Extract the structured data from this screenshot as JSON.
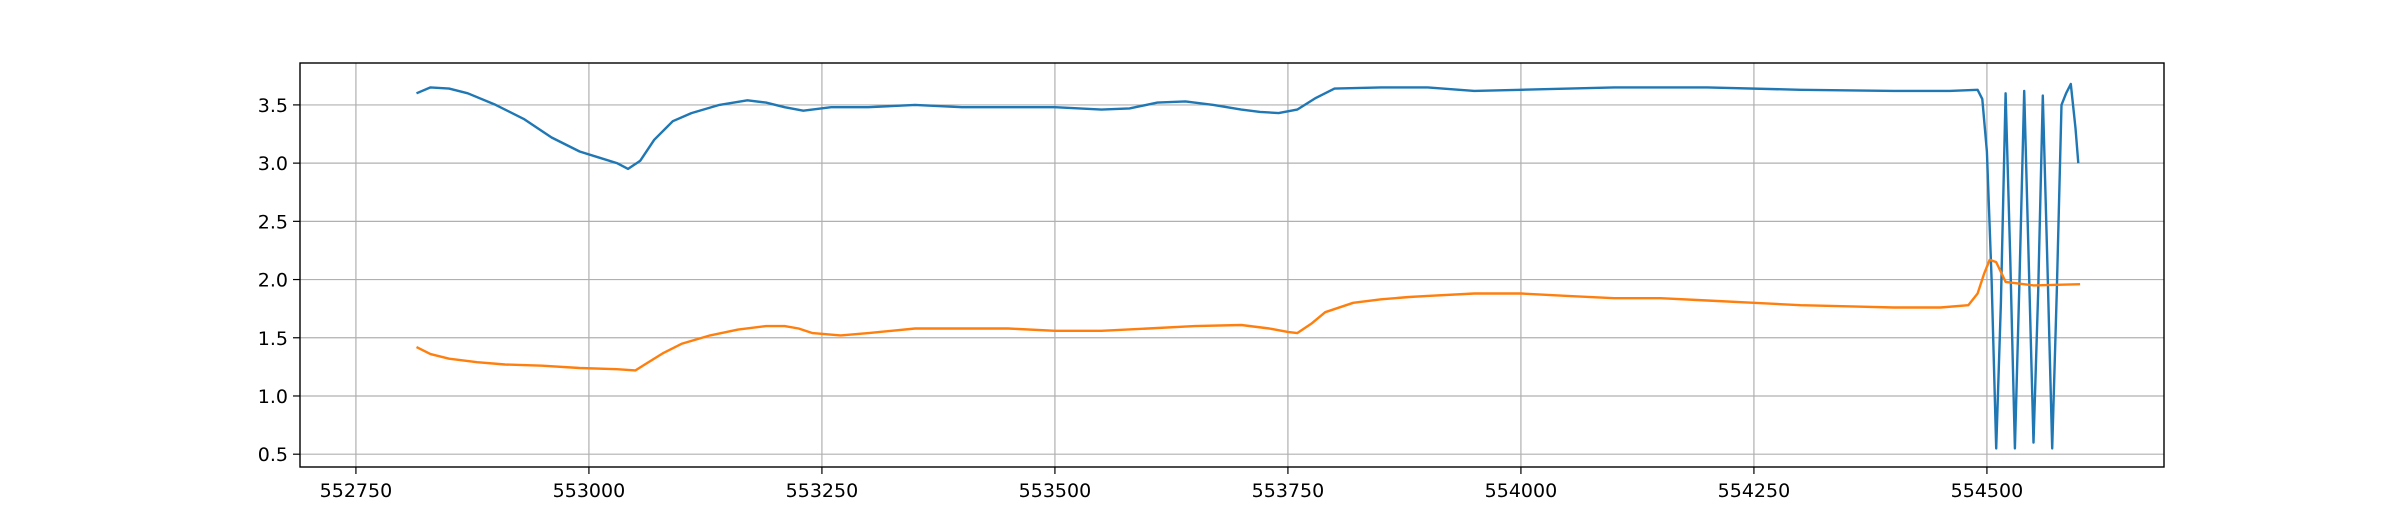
{
  "chart_data": {
    "type": "line",
    "title": "",
    "xlabel": "",
    "ylabel": "",
    "xlim": [
      552690,
      554690
    ],
    "ylim": [
      0.39,
      3.86
    ],
    "grid": true,
    "legend": "none",
    "x_ticks": [
      552750,
      553000,
      553250,
      553500,
      553750,
      554000,
      554250,
      554500
    ],
    "x_tick_labels": [
      "552750",
      "553000",
      "553250",
      "553500",
      "553750",
      "554000",
      "554250",
      "554500"
    ],
    "y_ticks": [
      0.5,
      1.0,
      1.5,
      2.0,
      2.5,
      3.0,
      3.5
    ],
    "y_tick_labels": [
      "0.5",
      "1.0",
      "1.5",
      "2.0",
      "2.5",
      "3.0",
      "3.5"
    ],
    "series": [
      {
        "color": "#1f77b4",
        "x": [
          552815,
          552830,
          552850,
          552870,
          552900,
          552930,
          552960,
          552990,
          553010,
          553030,
          553042,
          553055,
          553070,
          553090,
          553110,
          553140,
          553170,
          553190,
          553210,
          553230,
          553260,
          553300,
          553350,
          553400,
          553450,
          553500,
          553550,
          553580,
          553610,
          553640,
          553670,
          553700,
          553720,
          553740,
          553760,
          553780,
          553800,
          553850,
          553900,
          553950,
          554000,
          554100,
          554200,
          554300,
          554400,
          554460,
          554490,
          554495,
          554500,
          554505,
          554510,
          554515,
          554520,
          554525,
          554530,
          554535,
          554540,
          554545,
          554550,
          554555,
          554560,
          554565,
          554570,
          554575,
          554580,
          554585,
          554590,
          554595,
          554598
        ],
        "y": [
          3.6,
          3.65,
          3.64,
          3.6,
          3.5,
          3.38,
          3.22,
          3.1,
          3.05,
          3.0,
          2.95,
          3.02,
          3.2,
          3.36,
          3.43,
          3.5,
          3.54,
          3.52,
          3.48,
          3.45,
          3.48,
          3.48,
          3.5,
          3.48,
          3.48,
          3.48,
          3.46,
          3.47,
          3.52,
          3.53,
          3.5,
          3.46,
          3.44,
          3.43,
          3.46,
          3.56,
          3.64,
          3.65,
          3.65,
          3.62,
          3.63,
          3.65,
          3.65,
          3.63,
          3.62,
          3.62,
          3.63,
          3.55,
          3.1,
          2.0,
          0.55,
          1.8,
          3.6,
          2.2,
          0.55,
          2.0,
          3.62,
          2.1,
          0.6,
          1.9,
          3.58,
          2.1,
          0.55,
          1.9,
          3.5,
          3.6,
          3.68,
          3.3,
          3.0
        ]
      },
      {
        "color": "#ff7f0e",
        "x": [
          552815,
          552830,
          552850,
          552880,
          552910,
          552950,
          552990,
          553030,
          553050,
          553060,
          553080,
          553100,
          553130,
          553160,
          553190,
          553210,
          553225,
          553240,
          553270,
          553300,
          553350,
          553400,
          553450,
          553500,
          553550,
          553600,
          553650,
          553700,
          553730,
          553750,
          553760,
          553775,
          553790,
          553820,
          553850,
          553880,
          553900,
          553950,
          554000,
          554050,
          554100,
          554150,
          554200,
          554250,
          554300,
          554350,
          554400,
          554450,
          554480,
          554490,
          554497,
          554503,
          554510,
          554520,
          554550,
          554600
        ],
        "y": [
          1.42,
          1.36,
          1.32,
          1.29,
          1.27,
          1.26,
          1.24,
          1.23,
          1.22,
          1.27,
          1.37,
          1.45,
          1.52,
          1.57,
          1.6,
          1.6,
          1.58,
          1.54,
          1.52,
          1.54,
          1.58,
          1.58,
          1.58,
          1.56,
          1.56,
          1.58,
          1.6,
          1.61,
          1.58,
          1.55,
          1.54,
          1.62,
          1.72,
          1.8,
          1.83,
          1.85,
          1.86,
          1.88,
          1.88,
          1.86,
          1.84,
          1.84,
          1.82,
          1.8,
          1.78,
          1.77,
          1.76,
          1.76,
          1.78,
          1.88,
          2.05,
          2.17,
          2.15,
          1.98,
          1.95,
          1.96
        ]
      }
    ]
  }
}
